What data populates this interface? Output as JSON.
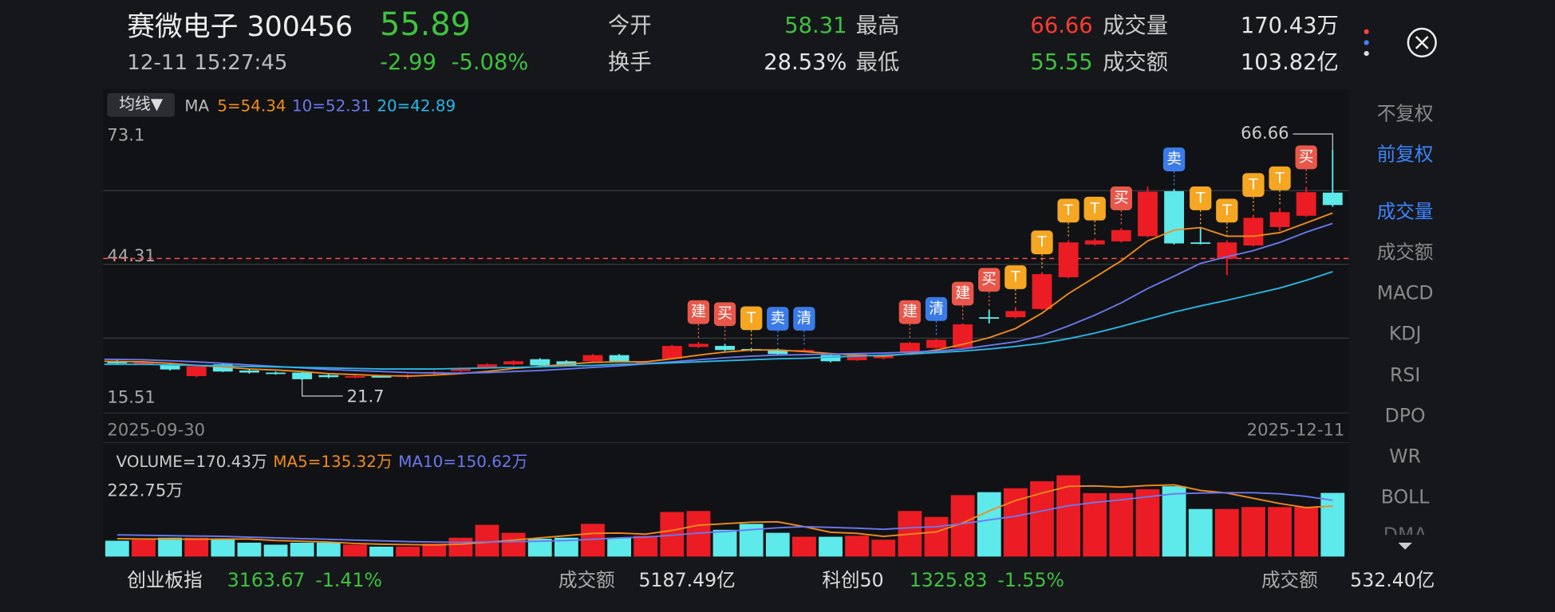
{
  "header": {
    "name": "赛微电子 300456",
    "price": "55.89",
    "time": "12-11 15:27:45",
    "change": "-2.99",
    "change_pct": "-5.08%",
    "stats": [
      {
        "label": "今开",
        "value": "58.31",
        "color": "#3ec23e"
      },
      {
        "label": "最高",
        "value": "66.66",
        "color": "#ff3b30"
      },
      {
        "label": "成交量",
        "value": "170.43万",
        "color": "#e6e6e6"
      },
      {
        "label": "换手",
        "value": "28.53%",
        "color": "#e6e6e6"
      },
      {
        "label": "最低",
        "value": "55.55",
        "color": "#3ec23e"
      },
      {
        "label": "成交额",
        "value": "103.82亿",
        "color": "#e6e6e6"
      }
    ]
  },
  "ma_button": "均线▼",
  "ma_label": "MA",
  "chart_data": [
    {
      "type": "candlestick",
      "ylim": [
        15.51,
        73.1
      ],
      "yticks": [
        15.51,
        44.31,
        73.1
      ],
      "x_labels": [
        "2025-09-30",
        "2025-12-11"
      ],
      "up_color": "#ec1c24",
      "down_color": "#5ee9ea",
      "open": [
        25.4,
        25.0,
        24.8,
        22.5,
        24.8,
        23.6,
        23.2,
        23.2,
        22.7,
        22.3,
        22.5,
        22.5,
        23.0,
        23.5,
        24.0,
        24.8,
        25.8,
        25.4,
        25.4,
        26.6,
        25.0,
        25.9,
        28.2,
        28.4,
        27.8,
        27.6,
        27.4,
        26.6,
        25.6,
        26.0,
        27.2,
        28.0,
        28.0,
        34.0,
        34.0,
        35.6,
        41.8,
        48.2,
        48.8,
        49.8,
        58.6,
        48.6,
        45.4,
        48.0,
        51.6,
        53.8,
        58.31
      ],
      "high": [
        25.6,
        25.5,
        25.0,
        24.6,
        25.0,
        23.8,
        23.4,
        23.4,
        22.9,
        22.7,
        22.7,
        22.9,
        23.5,
        24.2,
        25.0,
        25.6,
        26.0,
        25.6,
        26.8,
        26.8,
        25.5,
        28.6,
        29.2,
        28.8,
        28.0,
        27.9,
        27.9,
        26.8,
        27.0,
        26.6,
        29.2,
        29.8,
        32.8,
        35.5,
        36.0,
        42.8,
        49.0,
        49.4,
        51.4,
        59.5,
        59.0,
        51.4,
        49.0,
        54.0,
        55.3,
        59.4,
        66.66
      ],
      "low": [
        24.8,
        24.7,
        23.6,
        22.3,
        23.3,
        23.0,
        22.8,
        21.7,
        22.1,
        22.1,
        22.2,
        21.95,
        22.8,
        23.3,
        23.9,
        24.6,
        24.4,
        24.4,
        25.2,
        25.2,
        24.8,
        25.8,
        28.0,
        27.4,
        27.3,
        26.6,
        27.2,
        25.2,
        25.5,
        25.8,
        27.0,
        27.8,
        27.8,
        32.8,
        33.8,
        35.4,
        41.6,
        48.0,
        48.6,
        49.6,
        48.2,
        48.2,
        42.2,
        47.8,
        50.8,
        53.6,
        55.55
      ],
      "close": [
        25.0,
        25.2,
        23.8,
        24.4,
        23.4,
        23.2,
        23.0,
        21.9,
        22.3,
        22.5,
        22.4,
        22.7,
        23.3,
        24.0,
        24.8,
        25.4,
        24.6,
        24.6,
        26.6,
        25.4,
        25.2,
        28.4,
        28.8,
        27.6,
        27.6,
        26.8,
        27.6,
        25.4,
        26.8,
        26.4,
        29.0,
        29.6,
        32.6,
        34.0,
        35.2,
        42.4,
        48.6,
        49.0,
        51.0,
        58.5,
        48.4,
        48.4,
        48.6,
        53.4,
        54.5,
        58.4,
        55.89
      ],
      "series": [
        {
          "name": "5=54.34",
          "color": "#f08c1c",
          "values": [
            25.4,
            25.3,
            25.0,
            24.6,
            24.3,
            23.9,
            23.7,
            23.4,
            23.0,
            22.8,
            22.6,
            22.5,
            22.7,
            23.0,
            23.4,
            24.0,
            24.4,
            24.8,
            25.2,
            25.3,
            25.3,
            25.9,
            26.6,
            27.2,
            27.6,
            27.6,
            27.3,
            26.9,
            26.6,
            26.4,
            26.9,
            27.6,
            28.7,
            30.0,
            31.8,
            34.8,
            38.6,
            41.8,
            45.0,
            48.9,
            51.0,
            51.5,
            49.8,
            49.8,
            50.5,
            52.4,
            54.34
          ]
        },
        {
          "name": "10=52.31",
          "color": "#6a78f0",
          "values": [
            25.8,
            25.7,
            25.5,
            25.3,
            25.0,
            24.7,
            24.4,
            24.1,
            23.8,
            23.6,
            23.4,
            23.2,
            23.1,
            23.1,
            23.2,
            23.4,
            23.6,
            23.9,
            24.2,
            24.5,
            24.9,
            25.3,
            25.7,
            26.1,
            26.4,
            26.6,
            26.7,
            26.8,
            26.9,
            27.0,
            27.2,
            27.4,
            27.8,
            28.5,
            29.2,
            30.4,
            32.3,
            34.4,
            36.8,
            39.6,
            42.0,
            44.5,
            45.8,
            47.0,
            48.6,
            50.6,
            52.31
          ]
        },
        {
          "name": "20=42.89",
          "color": "#29b8ea",
          "values": [
            24.8,
            24.8,
            24.7,
            24.6,
            24.5,
            24.4,
            24.3,
            24.2,
            24.1,
            24.0,
            23.9,
            23.9,
            23.9,
            24.0,
            24.1,
            24.2,
            24.3,
            24.5,
            24.6,
            24.8,
            24.9,
            25.1,
            25.3,
            25.5,
            25.7,
            25.9,
            26.0,
            26.2,
            26.4,
            26.6,
            26.8,
            27.1,
            27.4,
            27.8,
            28.3,
            28.9,
            29.8,
            30.9,
            32.2,
            33.6,
            35.0,
            36.2,
            37.3,
            38.5,
            39.7,
            41.2,
            42.89
          ]
        }
      ],
      "flag_colors": {
        "建": "#e8574a",
        "买": "#e8574a",
        "T": "#f5a623",
        "卖": "#3b7be8",
        "清": "#3b7be8"
      },
      "annotations": [
        {
          "index": 22,
          "label": "建"
        },
        {
          "index": 23,
          "label": "买"
        },
        {
          "index": 24,
          "label": "T"
        },
        {
          "index": 25,
          "label": "卖"
        },
        {
          "index": 26,
          "label": "清"
        },
        {
          "index": 30,
          "label": "建"
        },
        {
          "index": 31,
          "label": "清"
        },
        {
          "index": 32,
          "label": "建"
        },
        {
          "index": 33,
          "label": "买"
        },
        {
          "index": 34,
          "label": "T"
        },
        {
          "index": 35,
          "label": "T"
        },
        {
          "index": 36,
          "label": "T"
        },
        {
          "index": 37,
          "label": "T"
        },
        {
          "index": 38,
          "label": "买"
        },
        {
          "index": 40,
          "label": "卖"
        },
        {
          "index": 41,
          "label": "T"
        },
        {
          "index": 42,
          "label": "T"
        },
        {
          "index": 43,
          "label": "T"
        },
        {
          "index": 44,
          "label": "T"
        },
        {
          "index": 45,
          "label": "买"
        }
      ]
    },
    {
      "type": "bar",
      "name": "VOLUME=170.43万",
      "ylim": [
        0,
        222.75
      ],
      "yticks": [
        {
          "value": 222.75,
          "label": "222.75万"
        }
      ],
      "values": [
        42.4,
        45.1,
        50.4,
        50.4,
        47.7,
        37.1,
        31.8,
        37.1,
        37.1,
        31.8,
        26.5,
        26.5,
        34.5,
        50.4,
        84.9,
        63.6,
        47.7,
        50.4,
        87.5,
        50.4,
        55.7,
        119.3,
        122.0,
        71.6,
        87.5,
        63.6,
        53.0,
        53.0,
        55.7,
        45.1,
        122.0,
        106.1,
        164.4,
        172.4,
        183.0,
        201.6,
        217.5,
        169.7,
        169.7,
        180.3,
        188.3,
        127.3,
        127.3,
        132.6,
        132.6,
        132.6,
        170.43
      ],
      "series": [
        {
          "name": "MA5=135.32万",
          "color": "#f08c1c",
          "values": [
            48,
            47,
            47,
            46,
            47,
            47,
            43,
            41,
            39,
            35,
            33,
            32,
            31,
            33,
            38,
            44,
            50,
            56,
            62,
            63,
            60,
            70,
            84,
            88,
            92,
            93,
            80,
            65,
            62,
            54,
            60,
            66,
            90,
            122,
            150,
            170,
            188,
            189,
            186,
            190,
            192,
            177,
            170,
            156,
            142,
            131,
            135.32
          ]
        },
        {
          "name": "MA10=150.62万",
          "color": "#6a78f0",
          "values": [
            58,
            57,
            56,
            55,
            54,
            52,
            50,
            48,
            46,
            44,
            42,
            40,
            39,
            38,
            39,
            40,
            41,
            43,
            46,
            50,
            52,
            57,
            63,
            67,
            72,
            77,
            80,
            78,
            76,
            73,
            77,
            80,
            88,
            98,
            108,
            122,
            136,
            145,
            152,
            160,
            168,
            170,
            171,
            171,
            168,
            161,
            150.62
          ]
        }
      ]
    }
  ],
  "side_menu": [
    {
      "label": "不复权",
      "active": false
    },
    {
      "label": "前复权",
      "active": true
    },
    {
      "label": "成交量",
      "active": true
    },
    {
      "label": "成交额",
      "active": false
    },
    {
      "label": "MACD",
      "active": false
    },
    {
      "label": "KDJ",
      "active": false
    },
    {
      "label": "RSI",
      "active": false
    },
    {
      "label": "DPO",
      "active": false
    },
    {
      "label": "WR",
      "active": false
    },
    {
      "label": "BOLL",
      "active": false
    },
    {
      "label": "DMA",
      "active": false
    }
  ],
  "footer": {
    "index1_name": "创业板指",
    "index1_value": "3163.67",
    "index1_change": "-1.41%",
    "amount1_label": "成交额",
    "amount1": "5187.49亿",
    "index2_name": "科创50",
    "index2_value": "1325.83",
    "index2_change": "-1.55%",
    "amount2_label": "成交额",
    "amount2": "532.40亿"
  }
}
